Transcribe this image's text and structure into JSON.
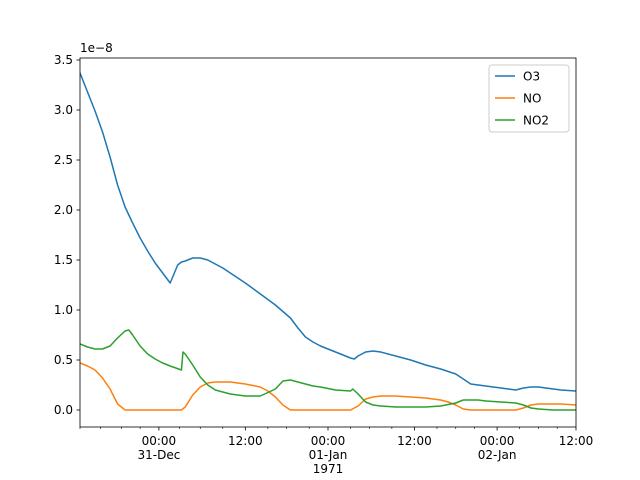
{
  "chart_data": {
    "type": "line",
    "title": "",
    "xlabel": "",
    "ylabel": "",
    "y_offset_label": "1e−8",
    "x_range_hours": [
      0,
      66
    ],
    "ylim": [
      -0.17,
      3.52
    ],
    "y_ticks": [
      {
        "value": 0.0,
        "label": "0.0"
      },
      {
        "value": 0.5,
        "label": "0.5"
      },
      {
        "value": 1.0,
        "label": "1.0"
      },
      {
        "value": 1.5,
        "label": "1.5"
      },
      {
        "value": 2.0,
        "label": "2.0"
      },
      {
        "value": 2.5,
        "label": "2.5"
      },
      {
        "value": 3.0,
        "label": "3.0"
      },
      {
        "value": 3.5,
        "label": "3.5"
      }
    ],
    "x_major_ticks": [
      {
        "hour": 10.5,
        "lines": [
          "00:00",
          "31-Dec"
        ]
      },
      {
        "hour": 22,
        "lines": [
          "12:00"
        ]
      },
      {
        "hour": 33,
        "lines": [
          "00:00",
          "01-Jan",
          "1971"
        ]
      },
      {
        "hour": 44.5,
        "lines": [
          "12:00"
        ]
      },
      {
        "hour": 55.5,
        "lines": [
          "00:00",
          "02-Jan"
        ]
      },
      {
        "hour": 66,
        "lines": [
          "12:00"
        ]
      }
    ],
    "x_minor_ticks": [
      0,
      2.75,
      5.5,
      8,
      13.25,
      16,
      19,
      25,
      27.5,
      30.5,
      36,
      38.5,
      41.5,
      47.5,
      50,
      52.5,
      58.5,
      61,
      63.5
    ],
    "legend_position": "upper-right",
    "series": [
      {
        "name": "O3",
        "color": "#1f77b4",
        "x": [
          0,
          1,
          2,
          3,
          4,
          5,
          6,
          7,
          8,
          9,
          10,
          11,
          12,
          13,
          13.5,
          14,
          15,
          16,
          17,
          18,
          19,
          20,
          22,
          24,
          26,
          28,
          29,
          30,
          31,
          32,
          33,
          34,
          35,
          36,
          36.5,
          37,
          38,
          39,
          40,
          42,
          44,
          46,
          48,
          50,
          51,
          52,
          53,
          54,
          55,
          56,
          57,
          58,
          58.5,
          59,
          60,
          61,
          62,
          63,
          64,
          66
        ],
        "y": [
          3.37,
          3.18,
          2.99,
          2.78,
          2.53,
          2.25,
          2.03,
          1.87,
          1.72,
          1.59,
          1.47,
          1.37,
          1.27,
          1.45,
          1.48,
          1.49,
          1.52,
          1.52,
          1.5,
          1.46,
          1.42,
          1.37,
          1.27,
          1.16,
          1.05,
          0.92,
          0.82,
          0.73,
          0.68,
          0.64,
          0.61,
          0.58,
          0.55,
          0.52,
          0.51,
          0.54,
          0.58,
          0.59,
          0.58,
          0.54,
          0.5,
          0.45,
          0.41,
          0.36,
          0.31,
          0.26,
          0.25,
          0.24,
          0.23,
          0.22,
          0.21,
          0.2,
          0.21,
          0.22,
          0.23,
          0.23,
          0.22,
          0.21,
          0.2,
          0.19
        ]
      },
      {
        "name": "NO",
        "color": "#ff7f0e",
        "x": [
          0,
          1,
          2,
          3,
          4,
          5,
          6,
          6.5,
          7,
          8,
          10,
          12,
          13.5,
          14,
          15,
          16,
          17,
          18,
          19,
          20,
          22,
          24,
          25,
          26,
          27,
          28,
          29,
          30,
          32,
          34,
          36,
          37,
          38,
          39,
          40,
          41,
          42,
          44,
          46,
          48,
          49,
          50,
          51,
          52,
          53,
          54,
          56,
          58,
          59,
          60,
          61,
          62,
          64,
          66
        ],
        "y": [
          0.47,
          0.44,
          0.4,
          0.32,
          0.21,
          0.06,
          0.0,
          0.0,
          0.0,
          0.0,
          0.0,
          0.0,
          0.0,
          0.03,
          0.15,
          0.23,
          0.27,
          0.28,
          0.28,
          0.28,
          0.26,
          0.23,
          0.19,
          0.13,
          0.05,
          0.0,
          0.0,
          0.0,
          0.0,
          0.0,
          0.0,
          0.04,
          0.11,
          0.13,
          0.14,
          0.14,
          0.14,
          0.13,
          0.12,
          0.1,
          0.08,
          0.05,
          0.01,
          0.0,
          0.0,
          0.0,
          0.0,
          0.0,
          0.02,
          0.05,
          0.06,
          0.06,
          0.06,
          0.05
        ]
      },
      {
        "name": "NO2",
        "color": "#2ca02c",
        "x": [
          0,
          1,
          2,
          3,
          4,
          5,
          6,
          6.5,
          7,
          8,
          9,
          10,
          11,
          12,
          13.5,
          13.7,
          14,
          15,
          16,
          17,
          18,
          20,
          22,
          24,
          26,
          27,
          28,
          29,
          30,
          31,
          32,
          34,
          36,
          36.3,
          37,
          38,
          39,
          40,
          42,
          44,
          46,
          48,
          50,
          51,
          52,
          53,
          54,
          56,
          58,
          59,
          60,
          61,
          62,
          63,
          64,
          66
        ],
        "y": [
          0.66,
          0.63,
          0.61,
          0.61,
          0.64,
          0.72,
          0.79,
          0.8,
          0.75,
          0.64,
          0.56,
          0.51,
          0.47,
          0.44,
          0.4,
          0.58,
          0.56,
          0.45,
          0.33,
          0.25,
          0.2,
          0.16,
          0.14,
          0.14,
          0.21,
          0.29,
          0.3,
          0.28,
          0.26,
          0.24,
          0.23,
          0.2,
          0.19,
          0.21,
          0.16,
          0.08,
          0.05,
          0.04,
          0.03,
          0.03,
          0.03,
          0.04,
          0.07,
          0.1,
          0.1,
          0.1,
          0.09,
          0.08,
          0.07,
          0.05,
          0.02,
          0.01,
          0.005,
          0.0,
          0.0,
          0.0
        ]
      }
    ]
  }
}
